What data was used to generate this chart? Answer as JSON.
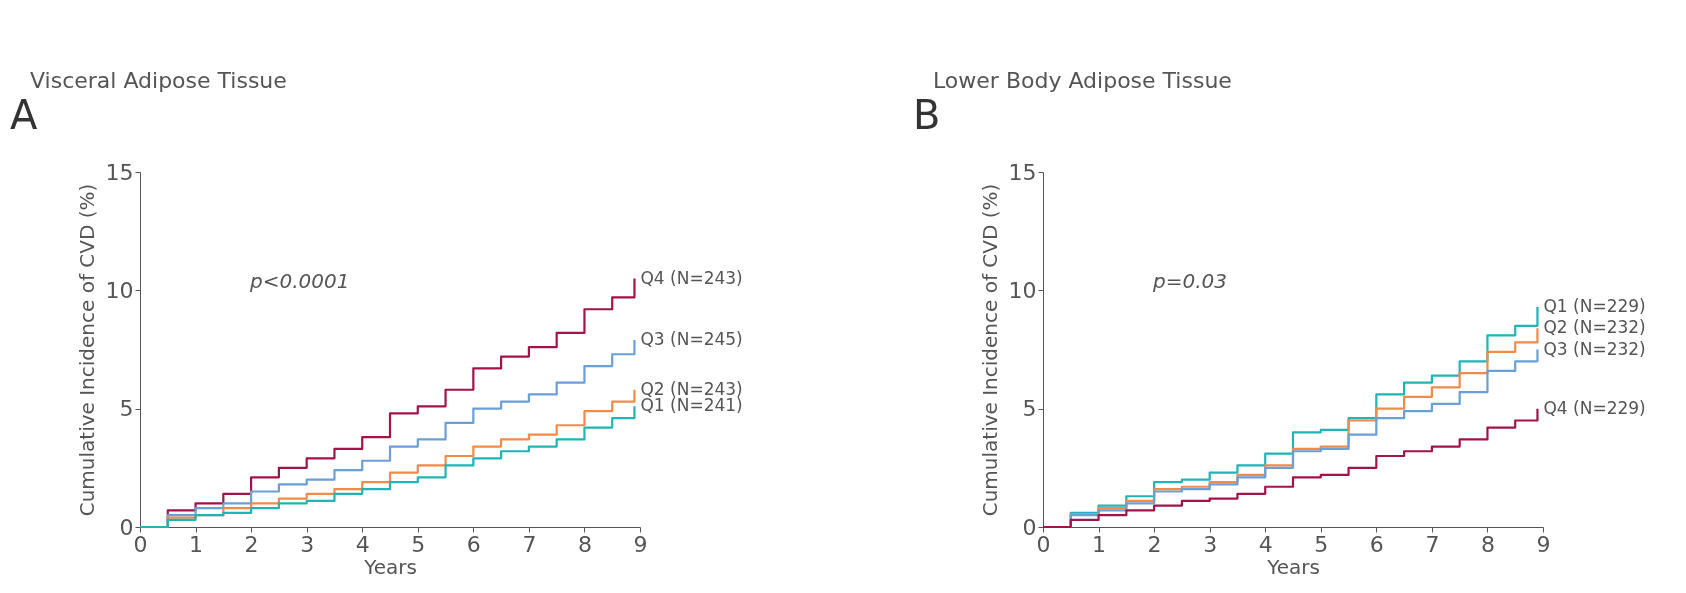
{
  "chart_data": [
    {
      "type": "step",
      "title": "Visceral Adipose Tissue",
      "xlabel": "Years",
      "ylabel": "Cumulative Incidence of CVD (%)",
      "annotations": [
        "A",
        "p<0.0001"
      ],
      "x": [
        0,
        0.5,
        1,
        1.5,
        2,
        2.5,
        3,
        3.5,
        4,
        4.5,
        5,
        5.5,
        6,
        6.5,
        7,
        7.5,
        8,
        8.5,
        8.9
      ],
      "series": [
        {
          "name": "Q4 (N=243)",
          "color": "#a3134a",
          "values": [
            0,
            0.7,
            1.0,
            1.4,
            2.1,
            2.5,
            2.9,
            3.3,
            3.8,
            4.8,
            5.1,
            5.8,
            6.7,
            7.2,
            7.6,
            8.2,
            9.2,
            9.7,
            10.5
          ]
        },
        {
          "name": "Q3 (N=245)",
          "color": "#6a9fd8",
          "values": [
            0,
            0.5,
            0.8,
            1.0,
            1.5,
            1.8,
            2.0,
            2.4,
            2.8,
            3.4,
            3.7,
            4.4,
            5.0,
            5.3,
            5.6,
            6.1,
            6.8,
            7.3,
            7.9
          ]
        },
        {
          "name": "Q2 (N=243)",
          "color": "#f28a4a",
          "values": [
            0,
            0.4,
            0.5,
            0.8,
            1.0,
            1.2,
            1.4,
            1.6,
            1.9,
            2.3,
            2.6,
            3.0,
            3.4,
            3.7,
            3.9,
            4.3,
            4.9,
            5.3,
            5.8
          ]
        },
        {
          "name": "Q1 (N=241)",
          "color": "#1fb5b5",
          "values": [
            0,
            0.3,
            0.5,
            0.6,
            0.8,
            1.0,
            1.1,
            1.4,
            1.6,
            1.9,
            2.1,
            2.6,
            2.9,
            3.2,
            3.4,
            3.7,
            4.2,
            4.6,
            5.1
          ]
        }
      ],
      "xlim": [
        0,
        9
      ],
      "xticks": [
        0,
        1,
        2,
        3,
        4,
        5,
        6,
        7,
        8,
        9
      ],
      "ylim": [
        0,
        15
      ],
      "yticks": [
        0,
        5,
        10,
        15
      ],
      "grid": false,
      "legend": false,
      "marker": "none",
      "line_style": "solid"
    },
    {
      "type": "step",
      "title": "Lower Body Adipose Tissue",
      "xlabel": "Years",
      "ylabel": "Cumulative Incidence of CVD (%)",
      "annotations": [
        "B",
        "p=0.03"
      ],
      "x": [
        0,
        0.5,
        1,
        1.5,
        2,
        2.5,
        3,
        3.5,
        4,
        4.5,
        5,
        5.5,
        6,
        6.5,
        7,
        7.5,
        8,
        8.5,
        8.9
      ],
      "series": [
        {
          "name": "Q1 (N=229)",
          "color": "#1fb5b5",
          "values": [
            0,
            0.6,
            0.9,
            1.3,
            1.9,
            2.0,
            2.3,
            2.6,
            3.1,
            4.0,
            4.1,
            4.6,
            5.6,
            6.1,
            6.4,
            7.0,
            8.1,
            8.5,
            9.3
          ]
        },
        {
          "name": "Q2 (N=232)",
          "color": "#f28a4a",
          "values": [
            0,
            0.55,
            0.8,
            1.1,
            1.6,
            1.7,
            1.9,
            2.2,
            2.6,
            3.3,
            3.4,
            4.5,
            5.0,
            5.5,
            5.9,
            6.5,
            7.4,
            7.8,
            8.4
          ]
        },
        {
          "name": "Q3 (N=232)",
          "color": "#6a9fd8",
          "values": [
            0,
            0.5,
            0.7,
            1.0,
            1.5,
            1.6,
            1.8,
            2.1,
            2.5,
            3.2,
            3.3,
            3.9,
            4.6,
            4.9,
            5.2,
            5.7,
            6.6,
            7.0,
            7.5
          ]
        },
        {
          "name": "Q4 (N=229)",
          "color": "#a3134a",
          "values": [
            0,
            0.3,
            0.5,
            0.7,
            0.9,
            1.1,
            1.2,
            1.4,
            1.7,
            2.1,
            2.2,
            2.5,
            3.0,
            3.2,
            3.4,
            3.7,
            4.2,
            4.5,
            5.0
          ]
        }
      ],
      "xlim": [
        0,
        9
      ],
      "xticks": [
        0,
        1,
        2,
        3,
        4,
        5,
        6,
        7,
        8,
        9
      ],
      "ylim": [
        0,
        15
      ],
      "yticks": [
        0,
        5,
        10,
        15
      ],
      "grid": false,
      "legend": false,
      "marker": "none",
      "line_style": "solid"
    }
  ]
}
